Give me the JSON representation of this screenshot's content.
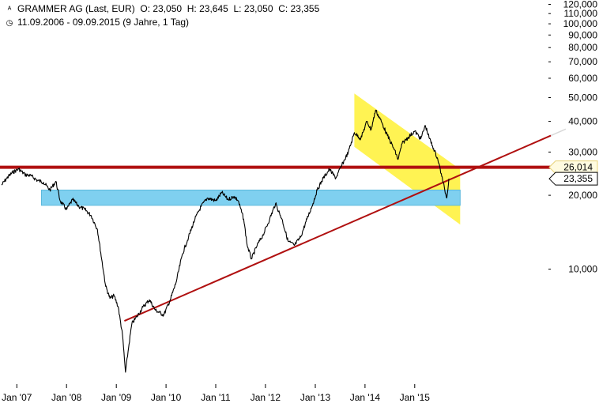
{
  "header": {
    "instrument_line": {
      "name": "GRAMMER AG (Last, EUR)",
      "open_label": "O:",
      "open": "23,050",
      "high_label": "H:",
      "high": "23,645",
      "low_label": "L:",
      "low": "23,050",
      "close_label": "C:",
      "close": "23,355"
    },
    "period_line": "11.09.2006 - 09.09.2015 (9 Jahre, 1 Tag)",
    "icons": [
      "chart-type-icon",
      "clock-icon"
    ]
  },
  "chart_data": {
    "type": "line",
    "y_scale": "log",
    "ylim": [
      3.4,
      125
    ],
    "xlim": [
      "2006-09-11",
      "2015-09-09"
    ],
    "grid": false,
    "y_ticks": [
      {
        "value": 10,
        "label": "10,000"
      },
      {
        "value": 20,
        "label": "20,000"
      },
      {
        "value": 30,
        "label": "30,000"
      },
      {
        "value": 40,
        "label": "40,000"
      },
      {
        "value": 50,
        "label": "50,000"
      },
      {
        "value": 60,
        "label": "60,000"
      },
      {
        "value": 70,
        "label": "70,000"
      },
      {
        "value": 80,
        "label": "80,000"
      },
      {
        "value": 90,
        "label": "90,000"
      },
      {
        "value": 100,
        "label": "100,000"
      },
      {
        "value": 110,
        "label": "110,000"
      },
      {
        "value": 120,
        "label": "120,000"
      }
    ],
    "x_ticks": [
      {
        "date": "2007-01-01",
        "label": "Jan '07"
      },
      {
        "date": "2008-01-01",
        "label": "Jan '08"
      },
      {
        "date": "2009-01-01",
        "label": "Jan '09"
      },
      {
        "date": "2010-01-01",
        "label": "Jan '10"
      },
      {
        "date": "2011-01-01",
        "label": "Jan '11"
      },
      {
        "date": "2012-01-01",
        "label": "Jan '12"
      },
      {
        "date": "2013-01-01",
        "label": "Jan '13"
      },
      {
        "date": "2014-01-01",
        "label": "Jan '14"
      },
      {
        "date": "2015-01-01",
        "label": "Jan '15"
      }
    ],
    "series": [
      {
        "color": "#000000",
        "points": [
          [
            "2006-09-11",
            22.0
          ],
          [
            "2006-10-20",
            23.5
          ],
          [
            "2006-12-01",
            24.8
          ],
          [
            "2007-01-15",
            25.6
          ],
          [
            "2007-03-01",
            24.3
          ],
          [
            "2007-04-15",
            24.0
          ],
          [
            "2007-06-01",
            23.0
          ],
          [
            "2007-07-15",
            22.6
          ],
          [
            "2007-09-01",
            21.0
          ],
          [
            "2007-10-15",
            22.8
          ],
          [
            "2007-11-15",
            19.0
          ],
          [
            "2008-01-01",
            17.5
          ],
          [
            "2008-02-15",
            19.2
          ],
          [
            "2008-04-01",
            18.0
          ],
          [
            "2008-05-15",
            17.5
          ],
          [
            "2008-07-01",
            16.5
          ],
          [
            "2008-08-15",
            14.5
          ],
          [
            "2008-09-15",
            11.0
          ],
          [
            "2008-10-15",
            8.5
          ],
          [
            "2008-11-15",
            7.6
          ],
          [
            "2008-12-15",
            7.8
          ],
          [
            "2009-01-15",
            7.0
          ],
          [
            "2009-02-15",
            5.4
          ],
          [
            "2009-03-09",
            3.8
          ],
          [
            "2009-04-01",
            4.8
          ],
          [
            "2009-04-25",
            6.0
          ],
          [
            "2009-06-01",
            6.4
          ],
          [
            "2009-07-15",
            7.0
          ],
          [
            "2009-09-01",
            7.5
          ],
          [
            "2009-10-15",
            6.8
          ],
          [
            "2009-12-15",
            6.5
          ],
          [
            "2010-02-01",
            7.5
          ],
          [
            "2010-03-15",
            8.8
          ],
          [
            "2010-05-01",
            11.5
          ],
          [
            "2010-06-15",
            13.5
          ],
          [
            "2010-08-01",
            16.0
          ],
          [
            "2010-09-15",
            18.0
          ],
          [
            "2010-11-01",
            19.5
          ],
          [
            "2011-01-01",
            19.0
          ],
          [
            "2011-02-15",
            20.5
          ],
          [
            "2011-04-01",
            19.2
          ],
          [
            "2011-05-15",
            19.8
          ],
          [
            "2011-06-15",
            19.0
          ],
          [
            "2011-07-25",
            16.0
          ],
          [
            "2011-08-20",
            12.5
          ],
          [
            "2011-09-20",
            11.0
          ],
          [
            "2011-11-01",
            12.5
          ],
          [
            "2011-12-15",
            13.8
          ],
          [
            "2012-02-01",
            16.0
          ],
          [
            "2012-03-15",
            18.5
          ],
          [
            "2012-05-01",
            16.0
          ],
          [
            "2012-06-15",
            13.0
          ],
          [
            "2012-08-01",
            12.5
          ],
          [
            "2012-09-15",
            13.5
          ],
          [
            "2012-11-01",
            16.0
          ],
          [
            "2012-12-15",
            18.5
          ],
          [
            "2013-01-15",
            21.0
          ],
          [
            "2013-03-01",
            23.5
          ],
          [
            "2013-04-15",
            25.5
          ],
          [
            "2013-06-01",
            23.5
          ],
          [
            "2013-07-15",
            26.5
          ],
          [
            "2013-09-01",
            30.0
          ],
          [
            "2013-10-15",
            36.0
          ],
          [
            "2013-12-01",
            34.0
          ],
          [
            "2014-01-15",
            40.0
          ],
          [
            "2014-02-15",
            37.0
          ],
          [
            "2014-03-20",
            44.5
          ],
          [
            "2014-05-01",
            40.0
          ],
          [
            "2014-06-15",
            35.0
          ],
          [
            "2014-08-01",
            31.0
          ],
          [
            "2014-09-01",
            28.0
          ],
          [
            "2014-10-01",
            32.5
          ],
          [
            "2014-11-15",
            34.5
          ],
          [
            "2015-01-01",
            36.5
          ],
          [
            "2015-02-15",
            34.0
          ],
          [
            "2015-03-20",
            38.5
          ],
          [
            "2015-04-20",
            34.0
          ],
          [
            "2015-05-20",
            31.0
          ],
          [
            "2015-06-20",
            28.0
          ],
          [
            "2015-07-15",
            24.5
          ],
          [
            "2015-08-10",
            21.0
          ],
          [
            "2015-08-25",
            19.5
          ],
          [
            "2015-09-09",
            23.355
          ]
        ]
      }
    ],
    "annotations": {
      "resistance_line": {
        "value": 26.014,
        "label": "26,014",
        "color": "#b01010"
      },
      "last_value": {
        "value": 23.355,
        "label": "23,355"
      },
      "support_zone": {
        "from": [
          "2007-07-01",
          18.2
        ],
        "to": [
          "2015-12-01",
          21.0
        ],
        "color": "#7fd0f0"
      },
      "trend_line": {
        "from": [
          "2009-03-01",
          6.15
        ],
        "to": [
          "2015-09-01",
          23.0
        ],
        "color": "#b01010"
      },
      "trend_extension_color": "#d8d8d8",
      "channel": {
        "top_start": [
          "2013-10-15",
          52.0
        ],
        "top_end": [
          "2015-12-01",
          25.5
        ],
        "bottom_end": [
          "2015-12-01",
          15.2
        ],
        "bottom_start": [
          "2013-10-15",
          31.5
        ],
        "color": "#fff240"
      }
    }
  }
}
